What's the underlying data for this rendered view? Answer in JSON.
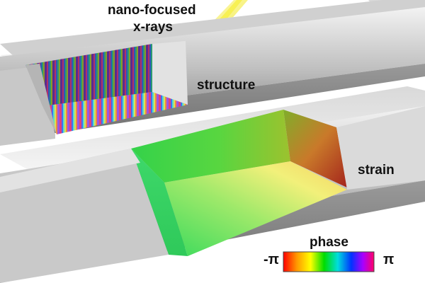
{
  "labels": {
    "title_line1": "nano-focused",
    "title_line2": "x-rays",
    "structure": "structure",
    "strain": "strain",
    "phase": "phase",
    "phase_min": "-π",
    "phase_max": "π"
  },
  "colors": {
    "background": "#ffffff",
    "rod_light": "#f2f2f2",
    "rod_mid": "#bdbdbd",
    "rod_dark": "#7a7a7a",
    "xray_beam": "#f7f25a",
    "strain_green": "#3ddc5a",
    "strain_yellow": "#f4f27a",
    "strain_red": "#b8321e"
  },
  "colorbar": [
    "#ff0000",
    "#ff9900",
    "#ffff00",
    "#00dd00",
    "#00dddd",
    "#0033ff",
    "#aa00ff",
    "#ff0066"
  ],
  "icons": [
    "nanowire-rod",
    "x-ray-beam",
    "phase-colorbar"
  ]
}
